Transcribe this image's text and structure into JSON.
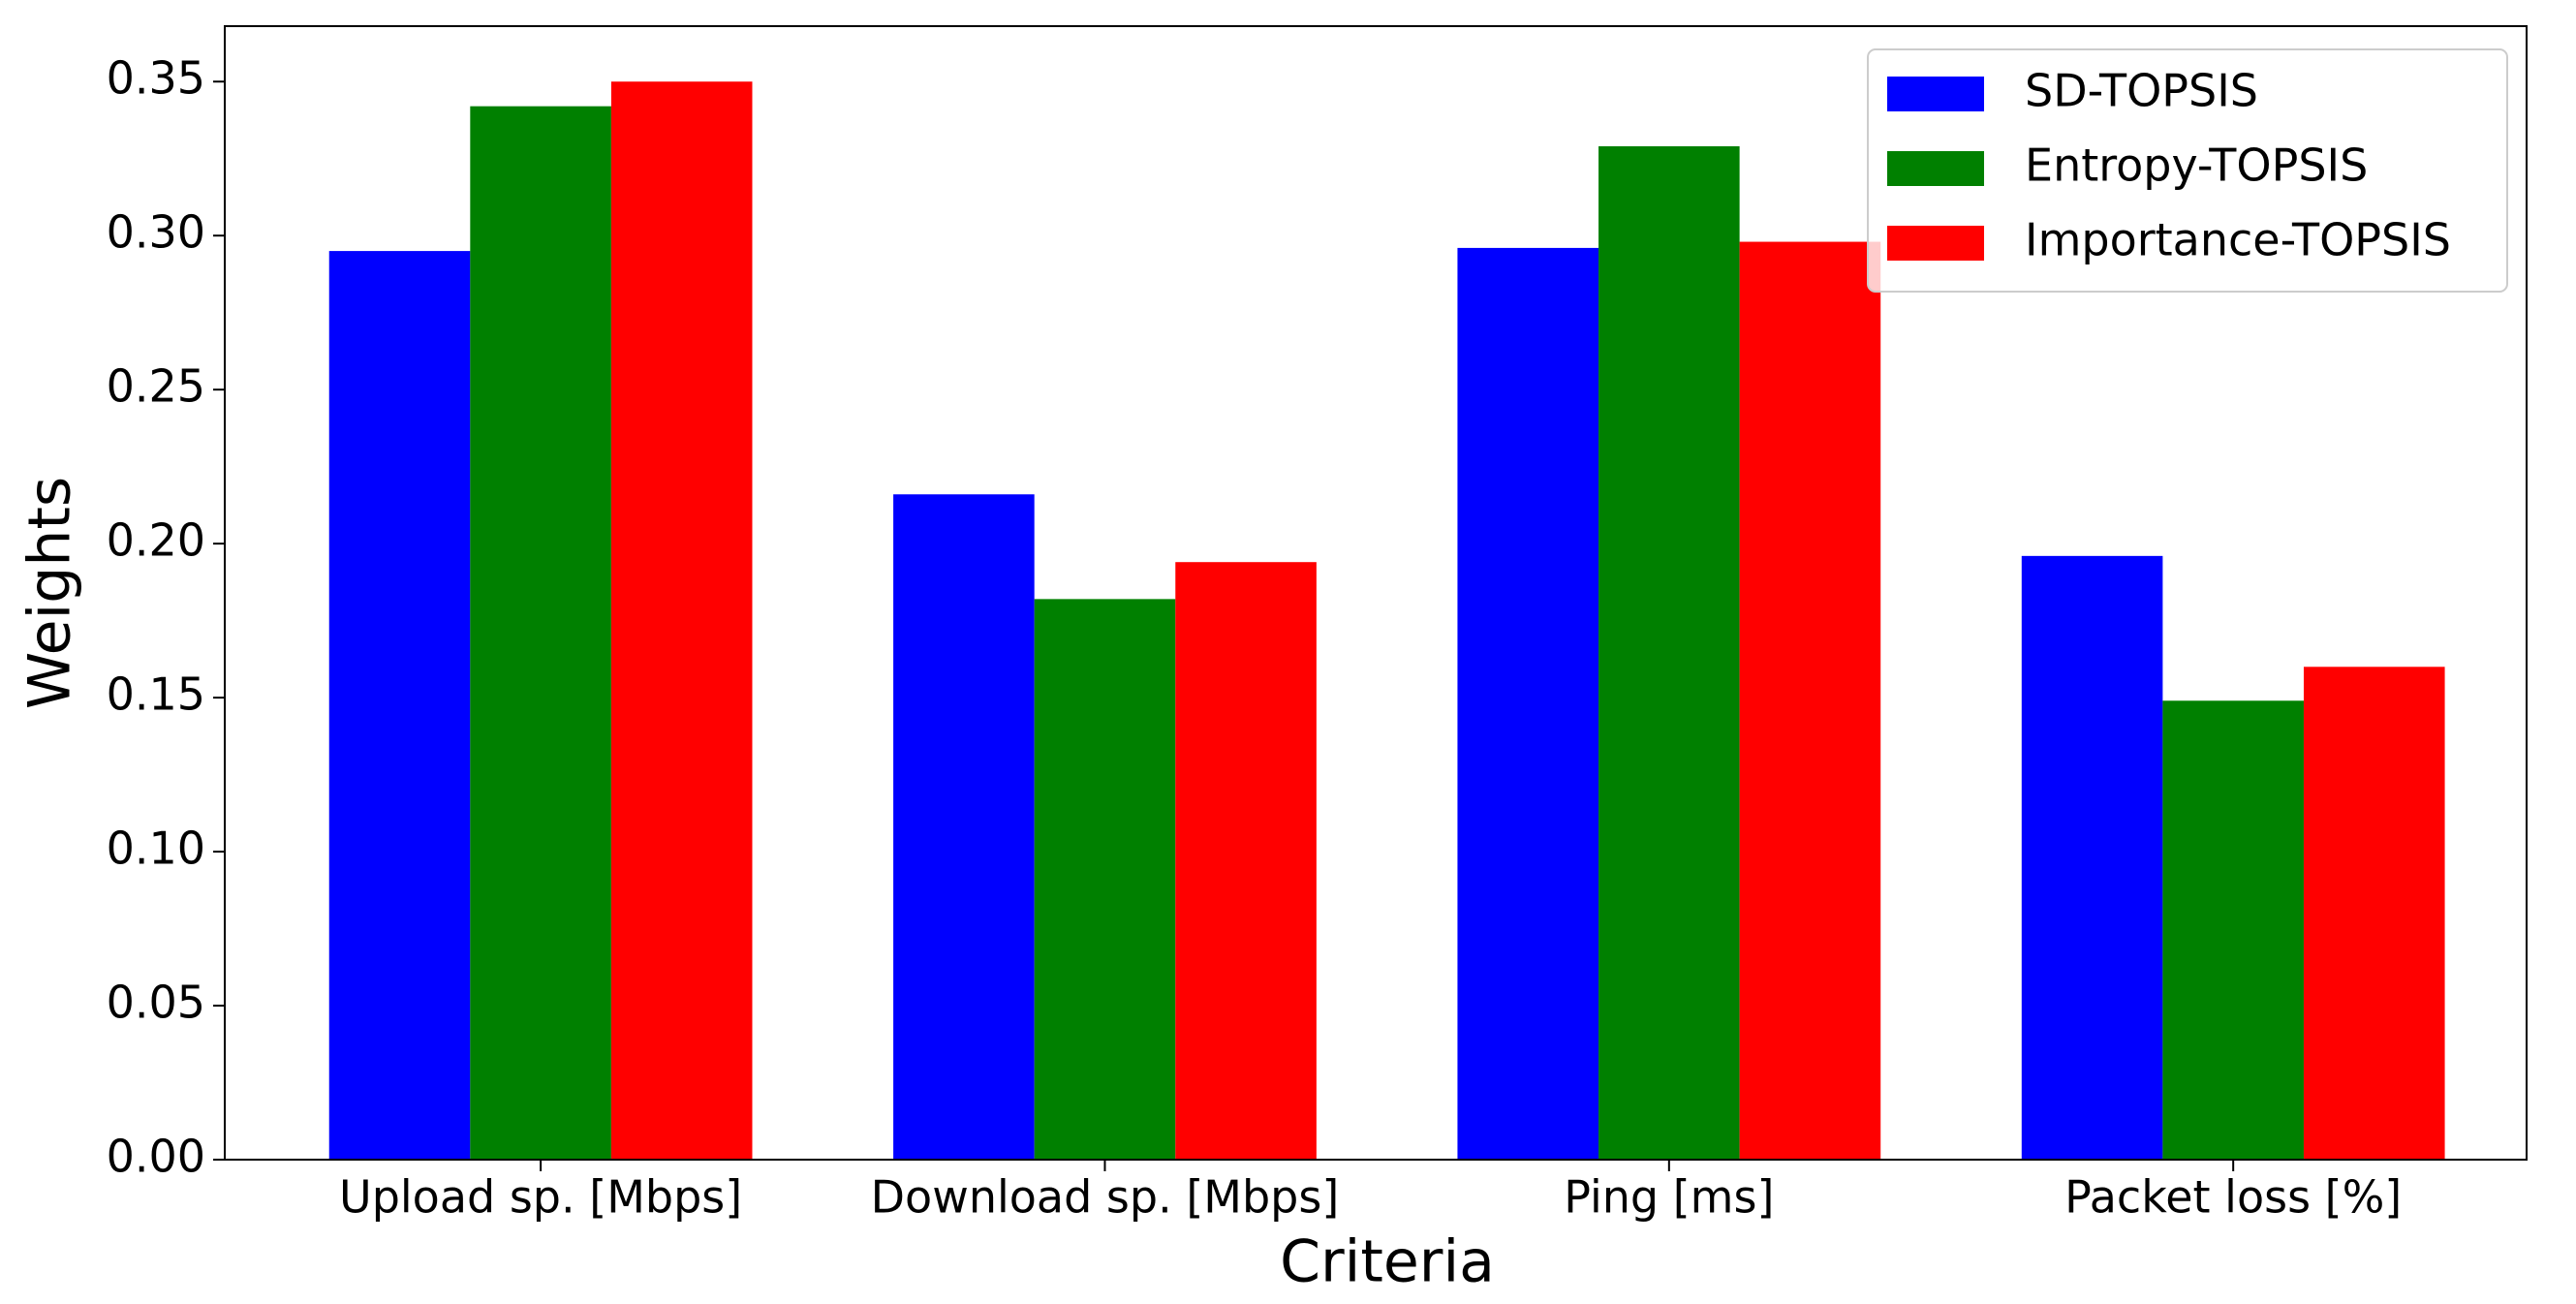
{
  "chart_data": {
    "type": "bar",
    "xlabel": "Criteria",
    "ylabel": "Weights",
    "categories": [
      "Upload sp. [Mbps]",
      "Download sp. [Mbps]",
      "Ping [ms]",
      "Packet loss [%]"
    ],
    "series": [
      {
        "name": "SD-TOPSIS",
        "color": "#0000ff",
        "values": [
          0.295,
          0.216,
          0.296,
          0.196
        ]
      },
      {
        "name": "Entropy-TOPSIS",
        "color": "#008000",
        "values": [
          0.342,
          0.182,
          0.329,
          0.149
        ]
      },
      {
        "name": "Importance-TOPSIS",
        "color": "#ff0000",
        "values": [
          0.35,
          0.194,
          0.298,
          0.16
        ]
      }
    ],
    "ylim": [
      0,
      0.368
    ],
    "yticks": [
      {
        "value": 0,
        "label": "0.00"
      },
      {
        "value": 0.05,
        "label": "0.05"
      },
      {
        "value": 0.1,
        "label": "0.10"
      },
      {
        "value": 0.15,
        "label": "0.15"
      },
      {
        "value": 0.2,
        "label": "0.20"
      },
      {
        "value": 0.25,
        "label": "0.25"
      },
      {
        "value": 0.3,
        "label": "0.30"
      },
      {
        "value": 0.35,
        "label": "0.35"
      }
    ],
    "legend": "upper right",
    "grid": false
  }
}
